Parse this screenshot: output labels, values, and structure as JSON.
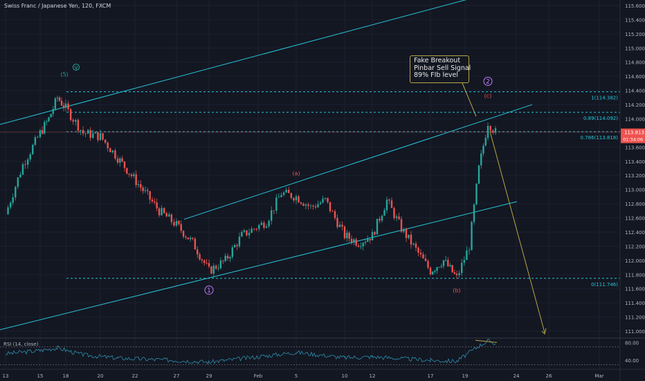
{
  "header": {
    "title": "Swiss Franc / Japanese Yen, 120, FXCM"
  },
  "indicator": {
    "label": "RSI (14, close)"
  },
  "annotation": {
    "lines": [
      "Fake Breakout",
      "Pinbar Sell Signal",
      "89% FIb level"
    ]
  },
  "price_tag": {
    "price": "113.813",
    "countdown": "01:34:06"
  },
  "colors": {
    "background": "#131722",
    "up": "#26a69a",
    "down": "#ef5350",
    "channel": "#26c6da",
    "fib": "#26c6da",
    "target_arrow": "#b9a646",
    "wave_main": "#c77dff",
    "wave_sub": "#ef5350",
    "wave_green": "#26a69a",
    "rsi": "#2d8fae"
  },
  "chart_data": [
    {
      "type": "candlestick",
      "title": "Swiss Franc / Japanese Yen, 120, FXCM",
      "x_ticks": [
        "13",
        "15",
        "18",
        "20",
        "22",
        "27",
        "29",
        "Feb",
        "5",
        "10",
        "12",
        "17",
        "19",
        "24",
        "26",
        "Mar"
      ],
      "y_ticks": [
        111.0,
        111.2,
        111.4,
        111.6,
        111.8,
        112.0,
        112.2,
        112.4,
        112.6,
        112.8,
        113.0,
        113.2,
        113.4,
        113.6,
        113.8,
        114.0,
        114.2,
        114.4,
        114.6,
        114.8,
        115.0,
        115.2,
        115.4,
        115.6
      ],
      "ylim": [
        110.9,
        115.7
      ],
      "last_price": 113.813,
      "fib_levels": [
        {
          "label": "1(114.382)",
          "value": 114.382
        },
        {
          "label": "0.89(114.092)",
          "value": 114.092
        },
        {
          "label": "0.786(113.818)",
          "value": 113.818
        },
        {
          "label": "0(111.746)",
          "value": 111.746
        }
      ],
      "close_path": [
        {
          "x": "Jan 13",
          "y": 112.65
        },
        {
          "x": "Jan 14",
          "y": 113.35
        },
        {
          "x": "Jan 15",
          "y": 113.8
        },
        {
          "x": "Jan 16",
          "y": 114.0
        },
        {
          "x": "Jan 17",
          "y": 114.3
        },
        {
          "x": "Jan 18",
          "y": 114.15
        },
        {
          "x": "Jan 20",
          "y": 113.8
        },
        {
          "x": "Jan 21",
          "y": 113.75
        },
        {
          "x": "Jan 22",
          "y": 113.45
        },
        {
          "x": "Jan 23",
          "y": 113.2
        },
        {
          "x": "Jan 24",
          "y": 112.95
        },
        {
          "x": "Jan 25",
          "y": 112.7
        },
        {
          "x": "Jan 27",
          "y": 112.5
        },
        {
          "x": "Jan 28",
          "y": 112.25
        },
        {
          "x": "Jan 29",
          "y": 111.85
        },
        {
          "x": "Jan 30",
          "y": 112.0
        },
        {
          "x": "Jan 31",
          "y": 112.35
        },
        {
          "x": "Feb 3",
          "y": 112.55
        },
        {
          "x": "Feb 4",
          "y": 112.95
        },
        {
          "x": "Feb 5",
          "y": 112.9
        },
        {
          "x": "Feb 6",
          "y": 112.75
        },
        {
          "x": "Feb 7",
          "y": 112.85
        },
        {
          "x": "Feb 10",
          "y": 112.35
        },
        {
          "x": "Feb 11",
          "y": 112.25
        },
        {
          "x": "Feb 12",
          "y": 112.35
        },
        {
          "x": "Feb 13",
          "y": 112.85
        },
        {
          "x": "Feb 14",
          "y": 112.45
        },
        {
          "x": "Feb 17",
          "y": 111.85
        },
        {
          "x": "Feb 18",
          "y": 112.0
        },
        {
          "x": "Feb 19",
          "y": 111.75
        },
        {
          "x": "Feb 20",
          "y": 112.2
        },
        {
          "x": "Feb 21",
          "y": 113.3
        },
        {
          "x": "Feb 22",
          "y": 113.95
        },
        {
          "x": "Feb 23",
          "y": 113.81
        }
      ],
      "wave_labels": [
        {
          "text": "(5)",
          "x": "Jan 17",
          "y": 114.6
        },
        {
          "text": "v",
          "x": "Jan 18",
          "y": 114.7
        },
        {
          "text": "1",
          "x": "Jan 29",
          "y": 111.55
        },
        {
          "text": "(a)",
          "x": "Feb 5",
          "y": 113.2
        },
        {
          "text": "(b)",
          "x": "Feb 19",
          "y": 111.55
        },
        {
          "text": "(c)",
          "x": "Feb 22",
          "y": 114.3
        },
        {
          "text": "2",
          "x": "Feb 22",
          "y": 114.5
        }
      ]
    },
    {
      "type": "line",
      "title": "RSI (14, close)",
      "y_ticks": [
        40.0,
        80.0
      ],
      "levels": [
        30,
        70
      ],
      "ylim": [
        20,
        90
      ],
      "x": [
        "Jan 13",
        "Jan 15",
        "Jan 17",
        "Jan 20",
        "Jan 22",
        "Jan 27",
        "Jan 29",
        "Feb 3",
        "Feb 5",
        "Feb 10",
        "Feb 12",
        "Feb 17",
        "Feb 19",
        "Feb 21",
        "Feb 22",
        "Feb 23"
      ],
      "values": [
        55,
        62,
        68,
        52,
        45,
        40,
        36,
        50,
        58,
        46,
        48,
        40,
        38,
        72,
        84,
        78
      ]
    }
  ]
}
